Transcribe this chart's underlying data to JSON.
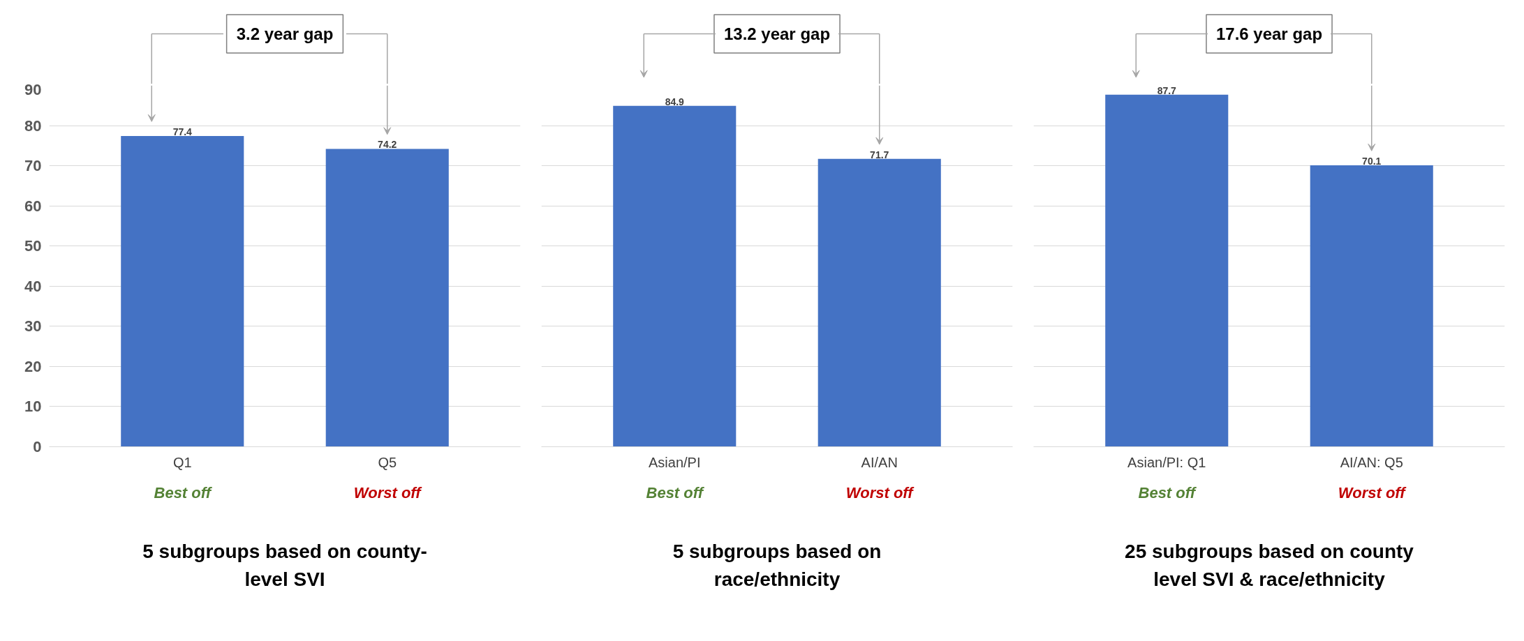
{
  "chart_data": [
    {
      "type": "bar",
      "categories": [
        "Q1",
        "Q5"
      ],
      "values": [
        77.4,
        74.2
      ],
      "color": "#4472c4",
      "ylim": [
        0,
        90
      ],
      "yticks": [
        0,
        10,
        20,
        30,
        40,
        50,
        60,
        70,
        80,
        90
      ],
      "grid": "y",
      "data_labels": true,
      "xlabel": "5 subgroups based on county-level SVI",
      "annotations": [
        "3.2 year gap",
        "Best off",
        "Worst off"
      ]
    },
    {
      "type": "bar",
      "categories": [
        "Asian/PI",
        "AI/AN"
      ],
      "values": [
        84.9,
        71.7
      ],
      "color": "#4472c4",
      "ylim": [
        0,
        90
      ],
      "yticks": [
        0,
        10,
        20,
        30,
        40,
        50,
        60,
        70,
        80,
        90
      ],
      "grid": "y",
      "data_labels": true,
      "tick_labels": "x",
      "xlabel": "5 subgroups based on race/ethnicity",
      "annotations": [
        "13.2 year gap",
        "Best off",
        "Worst off"
      ]
    },
    {
      "type": "bar",
      "categories": [
        "Asian/PI: Q1",
        "AI/AN: Q5"
      ],
      "values": [
        87.7,
        70.1
      ],
      "color": "#4472c4",
      "ylim": [
        0,
        90
      ],
      "yticks": [
        0,
        10,
        20,
        30,
        40,
        50,
        60,
        70,
        80,
        90
      ],
      "grid": "y",
      "data_labels": true,
      "tick_labels": "x",
      "xlabel": "25 subgroups based on county level SVI & race/ethnicity",
      "annotations": [
        "17.6 year gap",
        "Best off",
        "Worst off"
      ]
    }
  ]
}
